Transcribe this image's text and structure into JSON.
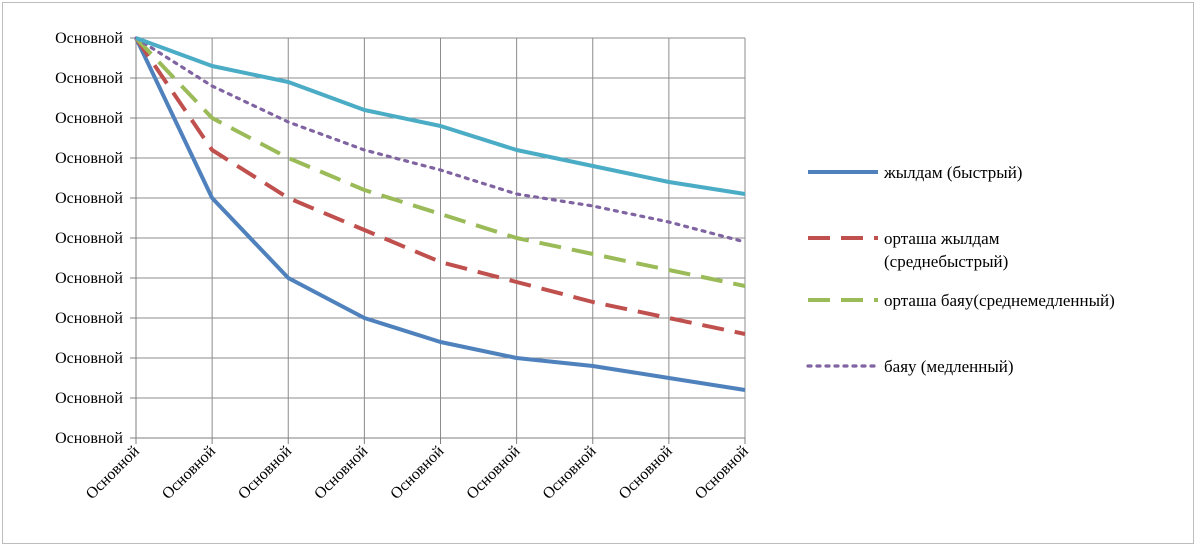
{
  "chart_data": {
    "type": "line",
    "title": "",
    "xlabel": "",
    "ylabel": "",
    "x_tick_labels": [
      "Основной",
      "Основной",
      "Основной",
      "Основной",
      "Основной",
      "Основной",
      "Основной",
      "Основной",
      "Основной"
    ],
    "y_tick_labels": [
      "Основной",
      "Основной",
      "Основной",
      "Основной",
      "Основной",
      "Основной",
      "Основной",
      "Основной",
      "Основной",
      "Основной",
      "Основной"
    ],
    "ylim": [
      0,
      10
    ],
    "grid": true,
    "legend_position": "right",
    "series": [
      {
        "name": "жылдам (быстрый)",
        "name_lines": [
          "жылдам (быстрый)"
        ],
        "color": "#4F81BD",
        "style": "solid",
        "values": [
          10,
          6,
          4,
          3,
          2.4,
          2,
          1.8,
          1.5,
          1.2
        ]
      },
      {
        "name": "орташа жылдам (среднебыстрый)",
        "name_lines": [
          "орташа жылдам",
          "(среднебыстрый)"
        ],
        "color": "#C0504D",
        "style": "dash",
        "values": [
          10,
          7.2,
          6,
          5.2,
          4.4,
          3.9,
          3.4,
          3,
          2.6
        ]
      },
      {
        "name": "орташа баяу(среднемедленный)",
        "name_lines": [
          "орташа баяу(среднемедленный)"
        ],
        "color": "#9BBB59",
        "style": "dash",
        "values": [
          10,
          8,
          7,
          6.2,
          5.6,
          5,
          4.6,
          4.2,
          3.8
        ]
      },
      {
        "name": "баяу (медленный)",
        "name_lines": [
          "баяу (медленный)"
        ],
        "color": "#8064A2",
        "style": "dot",
        "values": [
          10,
          8.8,
          7.9,
          7.2,
          6.7,
          6.1,
          5.8,
          5.4,
          4.9
        ]
      },
      {
        "name": "",
        "name_lines": [],
        "color": "#4BACC6",
        "style": "solid",
        "values": [
          10,
          9.3,
          8.9,
          8.2,
          7.8,
          7.2,
          6.8,
          6.4,
          6.1
        ]
      }
    ]
  }
}
